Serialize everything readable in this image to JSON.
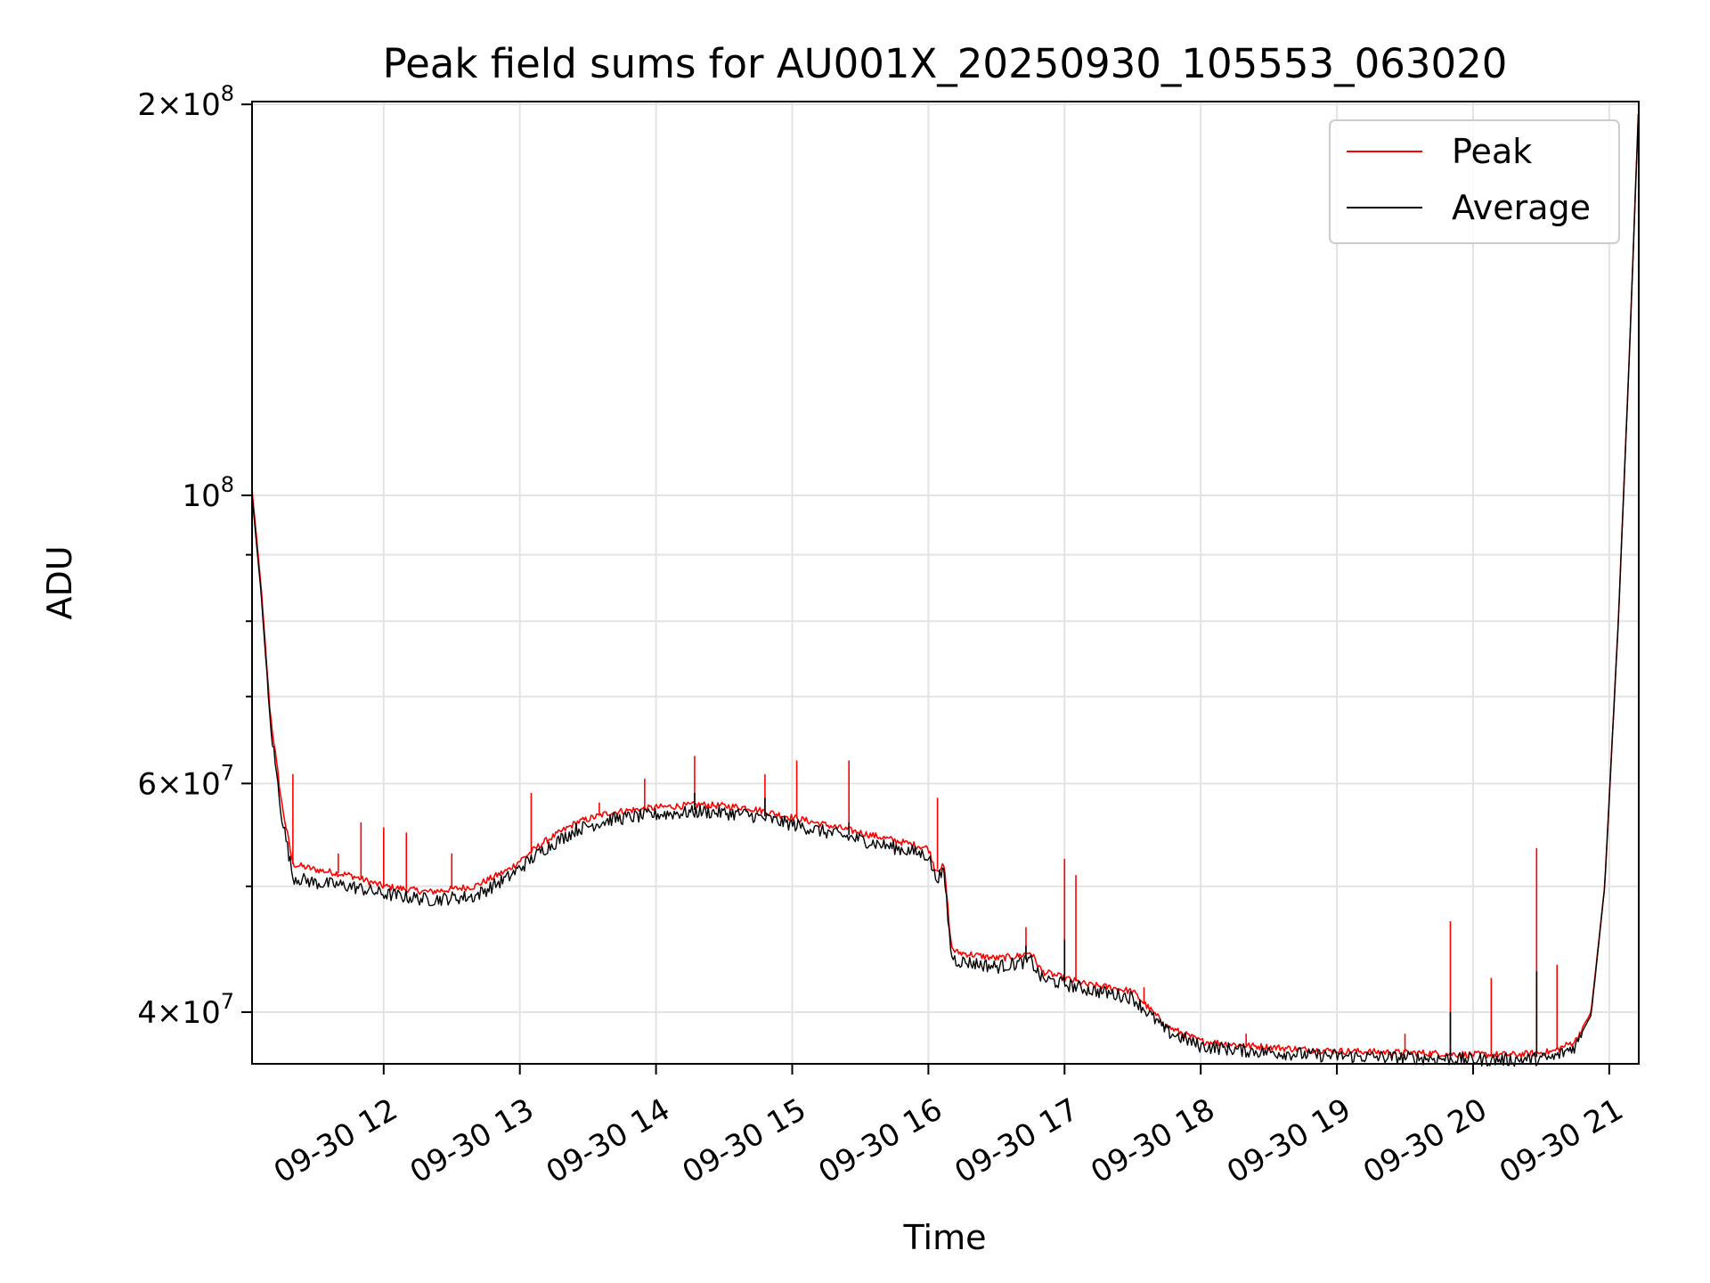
{
  "chart_data": {
    "type": "line",
    "title": "Peak field sums for AU001X_20250930_105553_063020",
    "xlabel": "Time",
    "ylabel": "ADU",
    "y_scale": "log",
    "ylim": [
      36500000,
      201000000
    ],
    "xlim": [
      "09-30 11:02",
      "09-30 21:13"
    ],
    "x_ticks": [
      {
        "t": "09-30 12:00",
        "label": "09-30 12"
      },
      {
        "t": "09-30 13:00",
        "label": "09-30 13"
      },
      {
        "t": "09-30 14:00",
        "label": "09-30 14"
      },
      {
        "t": "09-30 15:00",
        "label": "09-30 15"
      },
      {
        "t": "09-30 16:00",
        "label": "09-30 16"
      },
      {
        "t": "09-30 17:00",
        "label": "09-30 17"
      },
      {
        "t": "09-30 18:00",
        "label": "09-30 18"
      },
      {
        "t": "09-30 19:00",
        "label": "09-30 19"
      },
      {
        "t": "09-30 20:00",
        "label": "09-30 20"
      },
      {
        "t": "09-30 21:00",
        "label": "09-30 21"
      }
    ],
    "y_ticks": [
      {
        "v": 40000000,
        "mant": "4",
        "exp": "7"
      },
      {
        "v": 60000000,
        "mant": "6",
        "exp": "7"
      },
      {
        "v": 100000000,
        "mant": "",
        "exp": "8"
      },
      {
        "v": 200000000,
        "mant": "2",
        "exp": "8"
      }
    ],
    "y_minor": [
      50000000,
      70000000,
      80000000,
      90000000
    ],
    "grid": true,
    "legend_position": "top-right",
    "series": [
      {
        "name": "Peak",
        "color": "#ff0000",
        "x": [
          "09-30 11:02",
          "09-30 11:06",
          "09-30 11:10",
          "09-30 11:15",
          "09-30 11:20",
          "09-30 11:30",
          "09-30 11:45",
          "09-30 12:00",
          "09-30 12:20",
          "09-30 12:40",
          "09-30 12:55",
          "09-30 13:10",
          "09-30 13:25",
          "09-30 13:40",
          "09-30 14:00",
          "09-30 14:20",
          "09-30 14:40",
          "09-30 15:00",
          "09-30 15:30",
          "09-30 16:00",
          "09-30 16:03",
          "09-30 16:07",
          "09-30 16:10",
          "09-30 16:12",
          "09-30 16:30",
          "09-30 16:40",
          "09-30 16:45",
          "09-30 16:50",
          "09-30 17:00",
          "09-30 17:10",
          "09-30 17:20",
          "09-30 17:30",
          "09-30 17:45",
          "09-30 18:00",
          "09-30 18:20",
          "09-30 18:50",
          "09-30 19:10",
          "09-30 19:40",
          "09-30 20:00",
          "09-30 20:20",
          "09-30 20:35",
          "09-30 20:45",
          "09-30 20:52",
          "09-30 20:58",
          "09-30 21:04",
          "09-30 21:09",
          "09-30 21:13"
        ],
        "values": [
          101000000,
          85000000,
          68000000,
          58000000,
          52000000,
          51500000,
          51000000,
          50000000,
          49500000,
          50000000,
          51500000,
          54000000,
          56000000,
          57000000,
          57500000,
          57800000,
          57500000,
          56500000,
          55000000,
          53500000,
          51500000,
          51800000,
          45000000,
          44500000,
          44000000,
          44200000,
          44500000,
          43000000,
          42500000,
          42000000,
          41800000,
          41500000,
          39000000,
          38000000,
          37700000,
          37400000,
          37300000,
          37200000,
          37100000,
          37100000,
          37300000,
          38000000,
          40000000,
          50000000,
          80000000,
          130000000,
          201000000
        ],
        "spikes": [
          {
            "x": "09-30 11:20",
            "y": 61000000
          },
          {
            "x": "09-30 11:40",
            "y": 53000000
          },
          {
            "x": "09-30 11:50",
            "y": 56000000
          },
          {
            "x": "09-30 12:00",
            "y": 55500000
          },
          {
            "x": "09-30 12:10",
            "y": 55000000
          },
          {
            "x": "09-30 12:30",
            "y": 53000000
          },
          {
            "x": "09-30 13:05",
            "y": 59000000
          },
          {
            "x": "09-30 13:35",
            "y": 58000000
          },
          {
            "x": "09-30 13:55",
            "y": 60500000
          },
          {
            "x": "09-30 14:17",
            "y": 63000000
          },
          {
            "x": "09-30 14:48",
            "y": 61000000
          },
          {
            "x": "09-30 15:02",
            "y": 62500000
          },
          {
            "x": "09-30 15:25",
            "y": 62500000
          },
          {
            "x": "09-30 16:04",
            "y": 58500000
          },
          {
            "x": "09-30 16:43",
            "y": 46500000
          },
          {
            "x": "09-30 17:00",
            "y": 52500000
          },
          {
            "x": "09-30 17:05",
            "y": 51000000
          },
          {
            "x": "09-30 17:35",
            "y": 41800000
          },
          {
            "x": "09-30 18:20",
            "y": 38500000
          },
          {
            "x": "09-30 19:30",
            "y": 38500000
          },
          {
            "x": "09-30 19:50",
            "y": 47000000
          },
          {
            "x": "09-30 20:08",
            "y": 42500000
          },
          {
            "x": "09-30 20:28",
            "y": 53500000
          },
          {
            "x": "09-30 20:37",
            "y": 43500000
          }
        ]
      },
      {
        "name": "Average",
        "color": "#000000",
        "x": [
          "09-30 11:02",
          "09-30 11:06",
          "09-30 11:10",
          "09-30 11:15",
          "09-30 11:20",
          "09-30 11:30",
          "09-30 11:45",
          "09-30 12:00",
          "09-30 12:20",
          "09-30 12:40",
          "09-30 12:55",
          "09-30 13:10",
          "09-30 13:25",
          "09-30 13:40",
          "09-30 14:00",
          "09-30 14:20",
          "09-30 14:40",
          "09-30 15:00",
          "09-30 15:30",
          "09-30 16:00",
          "09-30 16:03",
          "09-30 16:07",
          "09-30 16:10",
          "09-30 16:12",
          "09-30 16:30",
          "09-30 16:40",
          "09-30 16:45",
          "09-30 16:50",
          "09-30 17:00",
          "09-30 17:10",
          "09-30 17:20",
          "09-30 17:30",
          "09-30 17:45",
          "09-30 18:00",
          "09-30 18:20",
          "09-30 18:50",
          "09-30 19:10",
          "09-30 19:40",
          "09-30 20:00",
          "09-30 20:20",
          "09-30 20:35",
          "09-30 20:45",
          "09-30 20:52",
          "09-30 20:58",
          "09-30 21:04",
          "09-30 21:09",
          "09-30 21:13"
        ],
        "values": [
          100000000,
          84000000,
          67000000,
          57000000,
          51000000,
          50500000,
          50200000,
          49500000,
          49000000,
          49300000,
          51000000,
          53500000,
          55500000,
          56500000,
          57000000,
          57300000,
          57000000,
          56000000,
          54500000,
          53000000,
          51000000,
          51300000,
          44500000,
          44000000,
          43500000,
          43800000,
          44000000,
          42600000,
          42200000,
          41800000,
          41500000,
          41200000,
          38800000,
          37800000,
          37500000,
          37200000,
          37100000,
          37000000,
          36900000,
          36900000,
          37000000,
          37800000,
          39800000,
          50000000,
          80000000,
          130000000,
          201000000
        ],
        "spikes": [
          {
            "x": "09-30 14:17",
            "y": 59000000
          },
          {
            "x": "09-30 14:48",
            "y": 58500000
          },
          {
            "x": "09-30 15:25",
            "y": 56000000
          },
          {
            "x": "09-30 16:43",
            "y": 45000000
          },
          {
            "x": "09-30 17:00",
            "y": 45500000
          },
          {
            "x": "09-30 19:50",
            "y": 40000000
          },
          {
            "x": "09-30 20:28",
            "y": 43000000
          }
        ]
      }
    ]
  }
}
